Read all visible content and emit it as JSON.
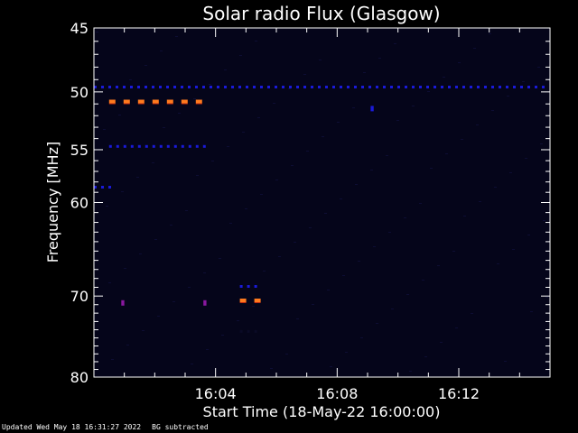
{
  "chart_data": {
    "type": "heatmap",
    "title": "Solar radio Flux (Glasgow)",
    "xlabel": "Start Time (18-May-22 16:00:00)",
    "ylabel": "Frequency [MHz]",
    "x_unit": "minutes after 16:00",
    "xlim": [
      0.0,
      15.0
    ],
    "ylim": [
      80,
      45
    ],
    "y_scale": "log",
    "y_ticks": [
      45,
      50,
      55,
      60,
      70,
      80
    ],
    "y_tick_labels": [
      "45",
      "50",
      "55",
      "60",
      "70",
      "80"
    ],
    "x_ticks": [
      4,
      8,
      12
    ],
    "x_tick_labels": [
      "16:04",
      "16:08",
      "16:12"
    ],
    "colors": {
      "background": "#000000",
      "faint": "#0a0a26",
      "low": "#1a1ad8",
      "mid": "#8a18a0",
      "high": "#ff7a1e"
    },
    "features": [
      {
        "name": "line-49.6",
        "freq_mhz": 49.6,
        "x_range": [
          0.0,
          15.0
        ],
        "intensity": "low",
        "pattern": "dashed"
      },
      {
        "name": "line-50.8",
        "freq_mhz": 50.8,
        "x_range": [
          0.5,
          3.9
        ],
        "intensity": "high",
        "pattern": "dashed"
      },
      {
        "name": "line-54.7",
        "freq_mhz": 54.7,
        "x_range": [
          0.5,
          3.9
        ],
        "intensity": "low",
        "pattern": "dashed"
      },
      {
        "name": "line-58.5",
        "freq_mhz": 58.5,
        "x_range": [
          0.0,
          0.7
        ],
        "intensity": "low",
        "pattern": "dashed"
      },
      {
        "name": "burst-68.9",
        "freq_mhz": 68.9,
        "x_range": [
          4.8,
          5.5
        ],
        "intensity": "low",
        "pattern": "dashed"
      },
      {
        "name": "burst-70.5",
        "freq_mhz": 70.5,
        "x_range": [
          4.8,
          5.5
        ],
        "intensity": "high",
        "pattern": "dashed"
      },
      {
        "name": "burst-74.2",
        "freq_mhz": 74.2,
        "x_range": [
          4.8,
          5.5
        ],
        "intensity": "faint",
        "pattern": "dashed"
      },
      {
        "name": "spot-70.8a",
        "freq_mhz": 70.8,
        "x_range": [
          0.9,
          1.0
        ],
        "intensity": "mid",
        "pattern": "solid"
      },
      {
        "name": "spot-70.8b",
        "freq_mhz": 70.8,
        "x_range": [
          3.6,
          3.7
        ],
        "intensity": "mid",
        "pattern": "solid"
      },
      {
        "name": "spot-51.4",
        "freq_mhz": 51.4,
        "x_range": [
          9.1,
          9.2
        ],
        "intensity": "low",
        "pattern": "solid"
      }
    ]
  },
  "footer": {
    "updated": "Updated Wed May 18 16:31:27 2022",
    "note": "BG subtracted"
  }
}
